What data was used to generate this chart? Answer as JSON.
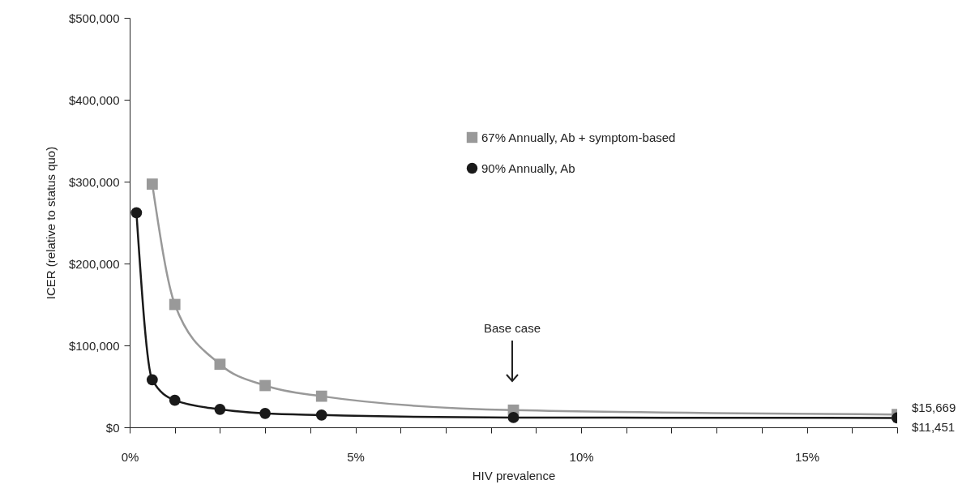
{
  "chart_data": {
    "type": "line",
    "xlabel": "HIV prevalence",
    "ylabel": "ICER (relative to status quo)",
    "xlim": [
      0,
      17
    ],
    "ylim": [
      0,
      500000
    ],
    "xticks": [
      {
        "value": 0,
        "label": "0%"
      },
      {
        "value": 1,
        "label": null
      },
      {
        "value": 2,
        "label": null
      },
      {
        "value": 3,
        "label": null
      },
      {
        "value": 4,
        "label": null
      },
      {
        "value": 5,
        "label": "5%"
      },
      {
        "value": 6,
        "label": null
      },
      {
        "value": 7,
        "label": null
      },
      {
        "value": 8,
        "label": null
      },
      {
        "value": 9,
        "label": null
      },
      {
        "value": 10,
        "label": "10%"
      },
      {
        "value": 11,
        "label": null
      },
      {
        "value": 12,
        "label": null
      },
      {
        "value": 13,
        "label": null
      },
      {
        "value": 14,
        "label": null
      },
      {
        "value": 15,
        "label": "15%"
      },
      {
        "value": 16,
        "label": null
      },
      {
        "value": 17,
        "label": null
      }
    ],
    "yticks": [
      {
        "value": 0,
        "label": "$0"
      },
      {
        "value": 100000,
        "label": "$100,000"
      },
      {
        "value": 200000,
        "label": "$200,000"
      },
      {
        "value": 300000,
        "label": "$300,000"
      },
      {
        "value": 400000,
        "label": "$400,000"
      },
      {
        "value": 500000,
        "label": "$500,000"
      }
    ],
    "x": [
      0.5,
      1,
      2,
      3,
      4.25,
      8.5,
      17
    ],
    "series": [
      {
        "name": "67% Annually, Ab + symptom-based",
        "color": "#999999",
        "marker": "square",
        "values": [
          297000,
          150000,
          77000,
          51000,
          38000,
          21000,
          15669
        ],
        "value_labels": [
          null,
          null,
          null,
          null,
          null,
          null,
          "$15,669"
        ]
      },
      {
        "name": "90% Annually, Ab",
        "color": "#1a1a1a",
        "marker": "circle",
        "x": [
          0.15,
          0.5,
          1,
          2,
          3,
          4.25,
          8.5,
          17
        ],
        "values": [
          262000,
          58000,
          33000,
          22000,
          17000,
          15000,
          12000,
          11451
        ],
        "value_labels": [
          null,
          null,
          null,
          null,
          null,
          null,
          null,
          "$11,451"
        ]
      }
    ],
    "annotations": [
      "Base case"
    ],
    "grid": false,
    "legend": "top right",
    "line_style": "solid"
  }
}
